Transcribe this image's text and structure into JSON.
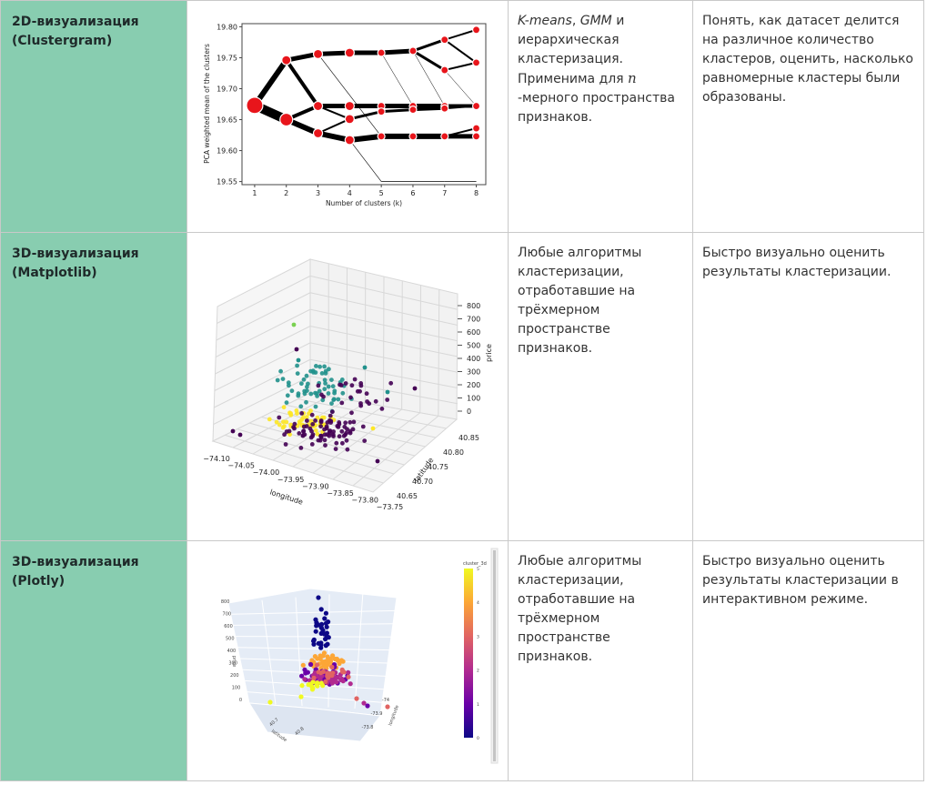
{
  "rows": [
    {
      "method_line1": "2D-визуализация",
      "method_line2": "(Clustergram)",
      "algo_italic1": "K-means",
      "algo_sep": ", ",
      "algo_italic2": "GMM",
      "algo_rest1": " и иерархическая кластеризация. Применима для ",
      "algo_math": "n",
      "algo_rest2": " -мерного пространства признаков.",
      "goal": "Понять, как датасет делится на различное количество кластеров, оценить, насколько равномерные кластеры были образованы."
    },
    {
      "method_line1": "3D-визуализация",
      "method_line2": "(Matplotlib)",
      "algo": "Любые алгоритмы кластеризации, отработавшие на трёхмерном пространстве признаков.",
      "goal": "Быстро визуально оценить результаты кластеризации."
    },
    {
      "method_line1": "3D-визуализация",
      "method_line2": "(Plotly)",
      "algo": "Любые алгоритмы кластеризации, отработавшие на трёхмерном пространстве признаков.",
      "goal": "Быстро визуально оценить результаты кластеризации в интерактивном режиме."
    }
  ],
  "chart_data": [
    {
      "type": "line",
      "xlabel": "Number of clusters (k)",
      "ylabel": "PCA weighted mean of the clusters",
      "x_ticks": [
        "1",
        "2",
        "3",
        "4",
        "5",
        "6",
        "7",
        "8"
      ],
      "y_ticks": [
        "19.55",
        "19.60",
        "19.65",
        "19.70",
        "19.75",
        "19.80"
      ],
      "xlim": [
        0.6,
        8.3
      ],
      "ylim": [
        19.545,
        19.805
      ],
      "nodes": [
        [
          1,
          19.673
        ],
        [
          2,
          19.746
        ],
        [
          2,
          19.65
        ],
        [
          3,
          19.756
        ],
        [
          3,
          19.672
        ],
        [
          3,
          19.628
        ],
        [
          4,
          19.758
        ],
        [
          4,
          19.672
        ],
        [
          4,
          19.651
        ],
        [
          4,
          19.617
        ],
        [
          5,
          19.758
        ],
        [
          5,
          19.672
        ],
        [
          5,
          19.663
        ],
        [
          5,
          19.623
        ],
        [
          6,
          19.761
        ],
        [
          6,
          19.672
        ],
        [
          6,
          19.666
        ],
        [
          6,
          19.623
        ],
        [
          7,
          19.779
        ],
        [
          7,
          19.73
        ],
        [
          7,
          19.672
        ],
        [
          7,
          19.668
        ],
        [
          7,
          19.623
        ],
        [
          8,
          19.795
        ],
        [
          8,
          19.742
        ],
        [
          8,
          19.672
        ],
        [
          8,
          19.636
        ],
        [
          8,
          19.623
        ]
      ],
      "edges": [
        [
          1,
          19.673,
          2,
          19.746,
          6
        ],
        [
          1,
          19.673,
          2,
          19.65,
          10
        ],
        [
          2,
          19.746,
          3,
          19.756,
          5
        ],
        [
          2,
          19.746,
          3,
          19.672,
          4
        ],
        [
          2,
          19.65,
          3,
          19.672,
          4
        ],
        [
          2,
          19.65,
          3,
          19.628,
          6
        ],
        [
          3,
          19.756,
          4,
          19.758,
          5
        ],
        [
          3,
          19.672,
          4,
          19.672,
          5
        ],
        [
          3,
          19.672,
          4,
          19.651,
          2
        ],
        [
          3,
          19.628,
          4,
          19.651,
          2
        ],
        [
          3,
          19.628,
          4,
          19.617,
          6
        ],
        [
          3,
          19.756,
          5,
          19.623,
          0.6
        ],
        [
          4,
          19.758,
          5,
          19.758,
          5
        ],
        [
          4,
          19.672,
          5,
          19.672,
          5
        ],
        [
          4,
          19.651,
          5,
          19.663,
          3
        ],
        [
          4,
          19.617,
          5,
          19.623,
          6
        ],
        [
          4,
          19.617,
          5,
          19.55,
          0.6
        ],
        [
          5,
          19.758,
          6,
          19.761,
          5
        ],
        [
          5,
          19.672,
          6,
          19.672,
          5
        ],
        [
          5,
          19.663,
          6,
          19.666,
          3
        ],
        [
          5,
          19.623,
          6,
          19.623,
          6
        ],
        [
          5,
          19.758,
          6,
          19.672,
          0.5
        ],
        [
          6,
          19.761,
          7,
          19.779,
          3
        ],
        [
          6,
          19.761,
          7,
          19.73,
          3
        ],
        [
          6,
          19.672,
          7,
          19.672,
          5
        ],
        [
          6,
          19.666,
          7,
          19.668,
          3
        ],
        [
          6,
          19.623,
          7,
          19.623,
          6
        ],
        [
          6,
          19.761,
          7,
          19.672,
          0.5
        ],
        [
          7,
          19.779,
          8,
          19.795,
          2
        ],
        [
          7,
          19.779,
          8,
          19.742,
          2
        ],
        [
          7,
          19.73,
          8,
          19.742,
          2
        ],
        [
          7,
          19.672,
          8,
          19.672,
          4
        ],
        [
          7,
          19.668,
          8,
          19.672,
          2
        ],
        [
          7,
          19.623,
          8,
          19.636,
          2
        ],
        [
          7,
          19.623,
          8,
          19.623,
          5
        ],
        [
          7,
          19.73,
          8,
          19.672,
          0.5
        ],
        [
          5,
          19.55,
          6,
          19.55,
          0.8
        ],
        [
          6,
          19.55,
          7,
          19.55,
          0.8
        ],
        [
          7,
          19.55,
          8,
          19.55,
          0.8
        ]
      ]
    },
    {
      "type": "scatter",
      "xlabel": "longitude",
      "ylabel": "latitude",
      "zlabel": "price",
      "x_ticks": [
        "−74.10",
        "−74.05",
        "−74.00",
        "−73.95",
        "−73.90",
        "−73.85",
        "−73.80",
        "−73.75"
      ],
      "y_ticks": [
        "40.65",
        "40.70",
        "40.75",
        "40.80",
        "40.85"
      ],
      "z_ticks": [
        "0",
        "100",
        "200",
        "300",
        "400",
        "500",
        "600",
        "700",
        "800"
      ],
      "cluster_colors": [
        "#440154",
        "#21918c",
        "#fde725",
        "#7ad151"
      ]
    },
    {
      "type": "scatter",
      "colorbar_title": "cluster_3d",
      "colorbar_ticks": [
        "0",
        "1",
        "2",
        "3",
        "4",
        "5"
      ],
      "z_label": "price",
      "x_label": "latitude",
      "y_label": "longitude",
      "z_ticks": [
        "0",
        "100",
        "200",
        "300",
        "400",
        "500",
        "600",
        "700",
        "800"
      ],
      "lat_ticks": [
        "40.7",
        "40.8"
      ],
      "lon_ticks": [
        "-74",
        "-73.9",
        "-73.8"
      ],
      "cluster_colors": [
        "#0d0887",
        "#6a00a8",
        "#b12a90",
        "#e16462",
        "#fca636",
        "#f0f921"
      ]
    }
  ]
}
